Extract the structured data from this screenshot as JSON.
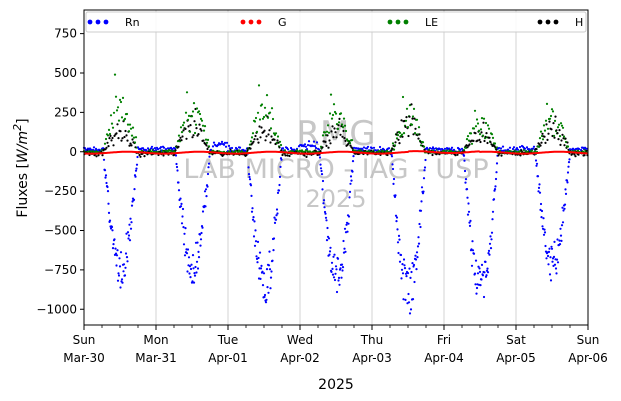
{
  "chart_data": {
    "type": "scatter",
    "title": "",
    "xlabel": "2025",
    "ylabel_main": "Fluxes [",
    "ylabel_unit_base": "W/m",
    "ylabel_unit_exp": "2",
    "ylabel_close": "]",
    "ylim": [
      -1100,
      900
    ],
    "yticks": [
      750,
      500,
      250,
      0,
      -250,
      -500,
      -750,
      -1000
    ],
    "ytick_labels": [
      "750",
      "500",
      "250",
      "0",
      "−250",
      "−500",
      "−750",
      "−1000"
    ],
    "xlim_days": [
      "2025-03-30",
      "2025-04-06"
    ],
    "xticks": [
      {
        "day": "Sun",
        "date": "Mar-30"
      },
      {
        "day": "Mon",
        "date": "Mar-31"
      },
      {
        "day": "Tue",
        "date": "Apr-01"
      },
      {
        "day": "Wed",
        "date": "Apr-02"
      },
      {
        "day": "Thu",
        "date": "Apr-03"
      },
      {
        "day": "Fri",
        "date": "Apr-04"
      },
      {
        "day": "Sat",
        "date": "Apr-05"
      },
      {
        "day": "Sun",
        "date": "Apr-06"
      }
    ],
    "grid": "vertical-major",
    "legend_position": "top",
    "series": [
      {
        "name": "Rn",
        "color": "#0000ff",
        "pattern": "net radiation: daytime minimum per day",
        "daily_min": [
          -880,
          -870,
          -990,
          -940,
          -1020,
          -1010,
          -820
        ]
      },
      {
        "name": "G",
        "color": "#ff0000",
        "pattern": "ground flux near zero",
        "range": [
          -15,
          15
        ]
      },
      {
        "name": "LE",
        "color": "#008000",
        "pattern": "latent heat: daytime maximum per day",
        "daily_max": [
          500,
          385,
          430,
          370,
          355,
          265,
          310
        ]
      },
      {
        "name": "H",
        "color": "#000000",
        "pattern": "sensible heat: daytime maximum per day",
        "daily_max": [
          200,
          280,
          230,
          215,
          310,
          190,
          230
        ]
      }
    ]
  },
  "watermark": {
    "line1": "RMG",
    "line2": "LAB MICRO - IAG - USP",
    "line3": "2025"
  }
}
